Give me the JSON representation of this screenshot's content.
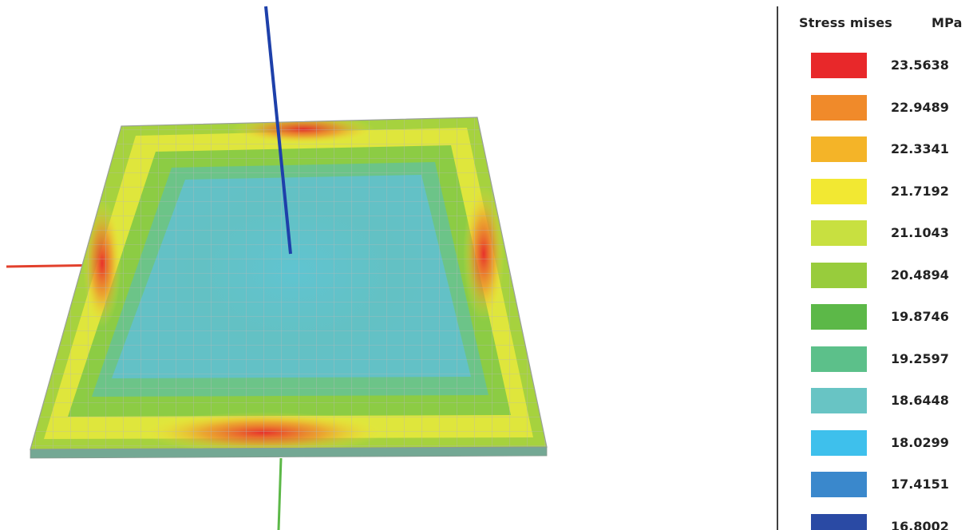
{
  "legend": {
    "title": "Stress mises",
    "unit": "MPa",
    "items": [
      {
        "value": "23.5638",
        "color": "#e8282a"
      },
      {
        "value": "22.9489",
        "color": "#f08a2a"
      },
      {
        "value": "22.3341",
        "color": "#f4b428"
      },
      {
        "value": "21.7192",
        "color": "#f2e832"
      },
      {
        "value": "21.1043",
        "color": "#c8e040"
      },
      {
        "value": "20.4894",
        "color": "#98cc3c"
      },
      {
        "value": "19.8746",
        "color": "#5cb848"
      },
      {
        "value": "19.2597",
        "color": "#5cc08a"
      },
      {
        "value": "18.6448",
        "color": "#68c4c4"
      },
      {
        "value": "18.0299",
        "color": "#3ec0ec"
      },
      {
        "value": "17.4151",
        "color": "#3a88cc"
      },
      {
        "value": "16.8002",
        "color": "#2a4aa4"
      }
    ]
  },
  "axes": {
    "x_color": "#e2402c",
    "y_color": "#5cb848",
    "z_color": "#1e40aa"
  }
}
